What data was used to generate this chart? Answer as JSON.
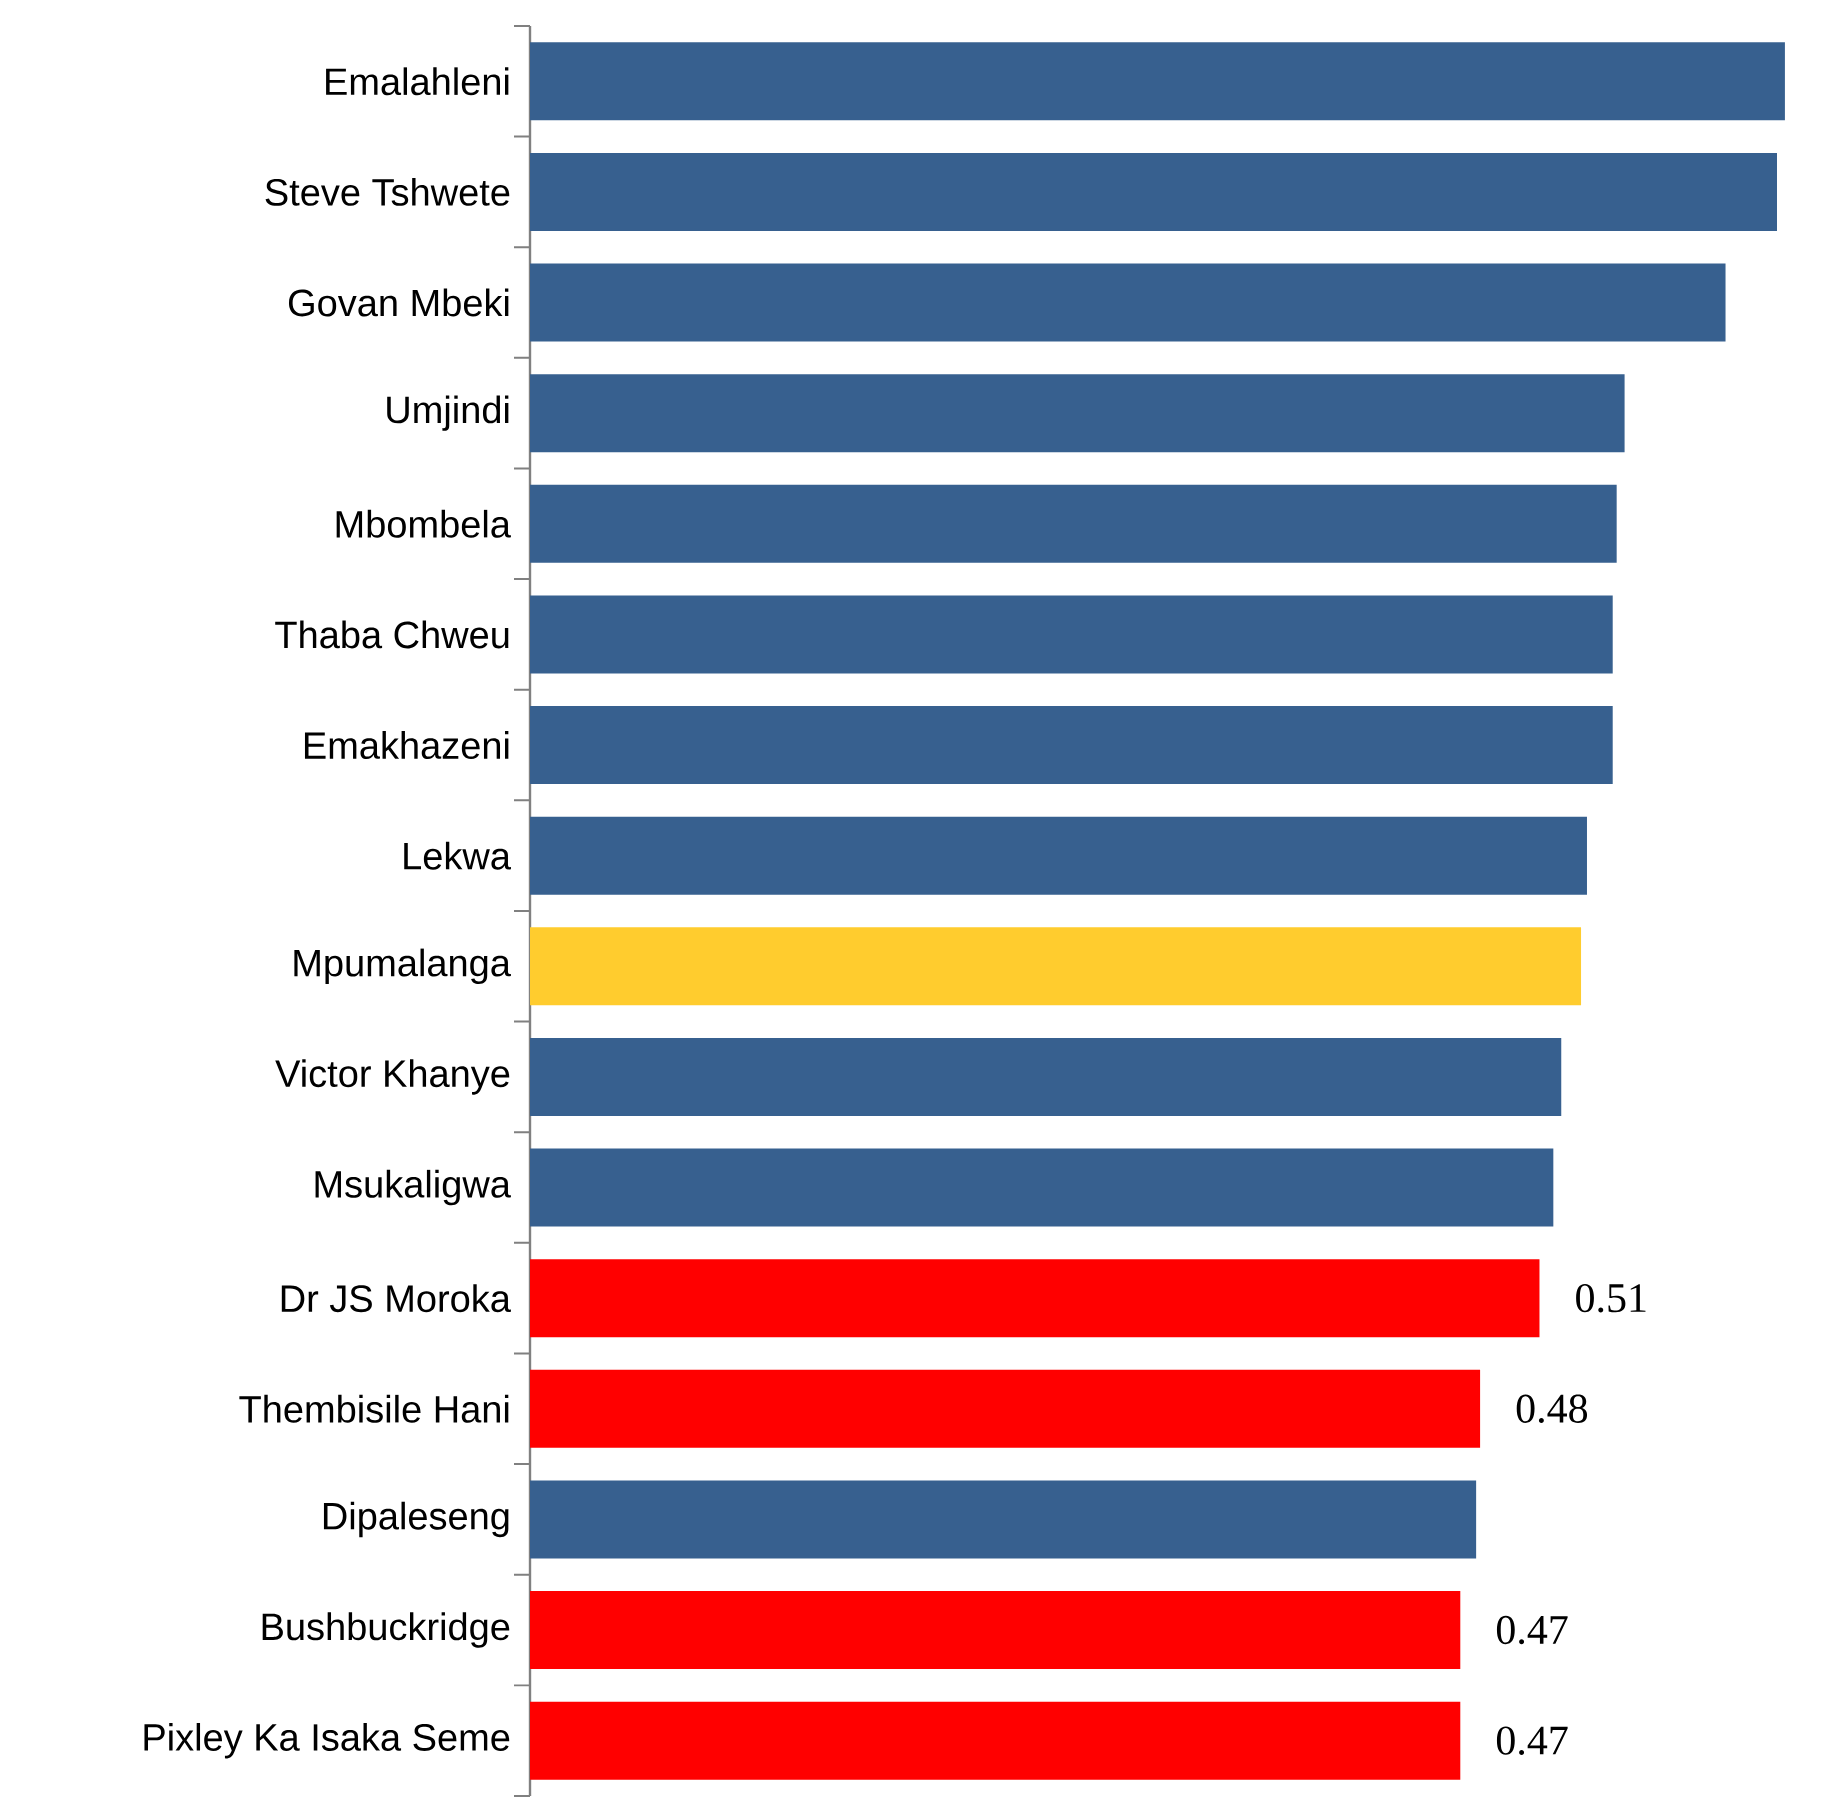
{
  "chart_data": {
    "type": "bar",
    "orientation": "horizontal",
    "categories": [
      "Emalahleni",
      "Steve Tshwete",
      "Govan Mbeki",
      "Umjindi",
      "Mbombela",
      "Thaba Chweu",
      "Emakhazeni",
      "Lekwa",
      "Mpumalanga",
      "Victor Khanye",
      "Msukaligwa",
      "Dr JS Moroka",
      "Thembisile Hani",
      "Dipaleseng",
      "Bushbuckridge",
      "Pixley Ka Isaka Seme"
    ],
    "values": [
      0.634,
      0.63,
      0.604,
      0.553,
      0.549,
      0.547,
      0.547,
      0.534,
      0.531,
      0.521,
      0.517,
      0.51,
      0.48,
      0.478,
      0.47,
      0.47
    ],
    "colors": [
      "#37608f",
      "#37608f",
      "#37608f",
      "#37608f",
      "#37608f",
      "#37608f",
      "#37608f",
      "#37608f",
      "#ffcc2e",
      "#37608f",
      "#37608f",
      "#ff0000",
      "#ff0000",
      "#37608f",
      "#ff0000",
      "#ff0000"
    ],
    "value_labels": [
      null,
      null,
      null,
      null,
      null,
      null,
      null,
      null,
      null,
      null,
      null,
      "0.51",
      "0.48",
      null,
      "0.47",
      "0.47"
    ],
    "tick_labels": "y"
  }
}
